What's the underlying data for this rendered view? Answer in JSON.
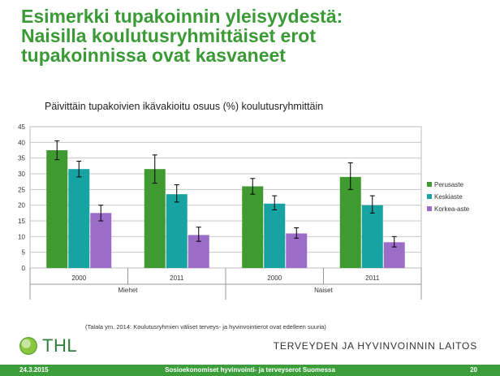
{
  "slide": {
    "title_lines": [
      "Esimerkki tupakoinnin yleisyydestä:",
      "Naisilla koulutusryhmittäiset erot",
      "tupakoinnissa ovat kasvaneet"
    ],
    "source_note": "(Talala ym. 2014: Koulutusryhmien väliset terveys- ja hyvinvointierot ovat edelleen suuria)",
    "logo_text": "THL",
    "org_name": "TERVEYDEN JA HYVINVOINNIN LAITOS",
    "footer": {
      "date": "24.3.2015",
      "center": "Sosioekonomiset hyvinvointi- ja terveyserot Suomessa",
      "page": "20"
    }
  },
  "colors": {
    "title_green": "#3a9a35",
    "footer_green": "#3c9e3a",
    "perusaste": "#3f9a2f",
    "keskiaste": "#16a3a1",
    "korkea_aste": "#9b6cc8"
  },
  "chart_data": {
    "type": "bar",
    "title": "Päivittäin tupakoivien ikävakioitu osuus (%) koulutusryhmittäin",
    "categories": [
      "2000",
      "2011",
      "2000",
      "2011"
    ],
    "groups": [
      {
        "label": "Miehet",
        "categories": [
          "2000",
          "2011"
        ]
      },
      {
        "label": "Naiset",
        "categories": [
          "2000",
          "2011"
        ]
      }
    ],
    "series": [
      {
        "name": "Perusaste",
        "values": [
          37.5,
          31.5,
          26,
          29
        ],
        "error_low": [
          34.5,
          27,
          23.5,
          25
        ],
        "error_high": [
          40.5,
          36,
          28.5,
          33.5
        ],
        "color": "#3f9a2f"
      },
      {
        "name": "Keskiaste",
        "values": [
          31.5,
          23.5,
          20.5,
          20
        ],
        "error_low": [
          29,
          21,
          18.5,
          17.5
        ],
        "error_high": [
          34,
          26.5,
          23,
          23
        ],
        "color": "#16a3a1"
      },
      {
        "name": "Korkea-aste",
        "values": [
          17.5,
          10.5,
          11,
          8.2
        ],
        "error_low": [
          15,
          8.5,
          9.5,
          6.7
        ],
        "error_high": [
          20,
          13,
          12.8,
          10
        ],
        "color": "#9b6cc8"
      }
    ],
    "ylim": [
      0,
      45
    ],
    "yticks": [
      "0",
      "5",
      "10",
      "15",
      "20",
      "25",
      "30",
      "35",
      "40",
      "45"
    ],
    "grid": true,
    "legend_position": "right"
  }
}
